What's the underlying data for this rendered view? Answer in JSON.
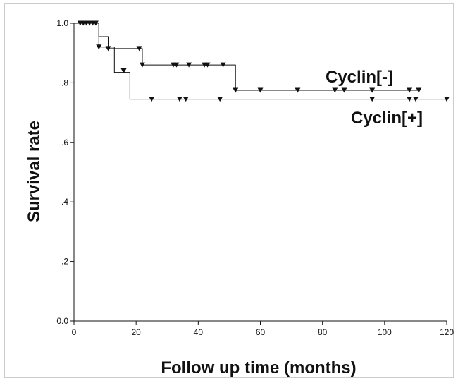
{
  "chart_data": {
    "type": "line",
    "subtype": "kaplan-meier-step",
    "xlabel": "Follow up time (months)",
    "ylabel": "Survival rate",
    "xlim": [
      0,
      120
    ],
    "ylim": [
      0,
      1
    ],
    "x_ticks": [
      0,
      20,
      40,
      60,
      80,
      100,
      120
    ],
    "x_tick_labels": [
      "0",
      "20",
      "40",
      "60",
      "80",
      "100",
      "120"
    ],
    "y_ticks": [
      0,
      0.2,
      0.4,
      0.6,
      0.8,
      1.0
    ],
    "y_tick_labels": [
      "0.0",
      ".2",
      ".4",
      ".6",
      ".8",
      "1.0"
    ],
    "grid": false,
    "censor_marker": "down-triangle",
    "series": [
      {
        "name": "Cyclin[-]",
        "label_text": "Cyclin[-]",
        "steps": [
          [
            0,
            1.0
          ],
          [
            8,
            0.955
          ],
          [
            11,
            0.915
          ],
          [
            22,
            0.86
          ],
          [
            52,
            0.775
          ],
          [
            111,
            0.775
          ]
        ],
        "censored": [
          [
            2,
            1.0
          ],
          [
            3,
            1.0
          ],
          [
            4,
            1.0
          ],
          [
            5,
            1.0
          ],
          [
            6,
            1.0
          ],
          [
            7,
            1.0
          ],
          [
            11,
            0.915
          ],
          [
            21,
            0.915
          ],
          [
            22,
            0.86
          ],
          [
            32,
            0.86
          ],
          [
            33,
            0.86
          ],
          [
            37,
            0.86
          ],
          [
            42,
            0.86
          ],
          [
            43,
            0.86
          ],
          [
            48,
            0.86
          ],
          [
            52,
            0.775
          ],
          [
            60,
            0.775
          ],
          [
            72,
            0.775
          ],
          [
            84,
            0.775
          ],
          [
            87,
            0.775
          ],
          [
            96,
            0.775
          ],
          [
            108,
            0.775
          ],
          [
            111,
            0.775
          ]
        ]
      },
      {
        "name": "Cyclin[+]",
        "label_text": "Cyclin[+]",
        "steps": [
          [
            0,
            1.0
          ],
          [
            8,
            0.92
          ],
          [
            13,
            0.835
          ],
          [
            18,
            0.745
          ],
          [
            120,
            0.745
          ]
        ],
        "censored": [
          [
            8,
            0.92
          ],
          [
            16,
            0.84
          ],
          [
            25,
            0.745
          ],
          [
            34,
            0.745
          ],
          [
            36,
            0.745
          ],
          [
            47,
            0.745
          ],
          [
            96,
            0.745
          ],
          [
            108,
            0.745
          ],
          [
            110,
            0.745
          ],
          [
            120,
            0.745
          ]
        ]
      }
    ]
  }
}
